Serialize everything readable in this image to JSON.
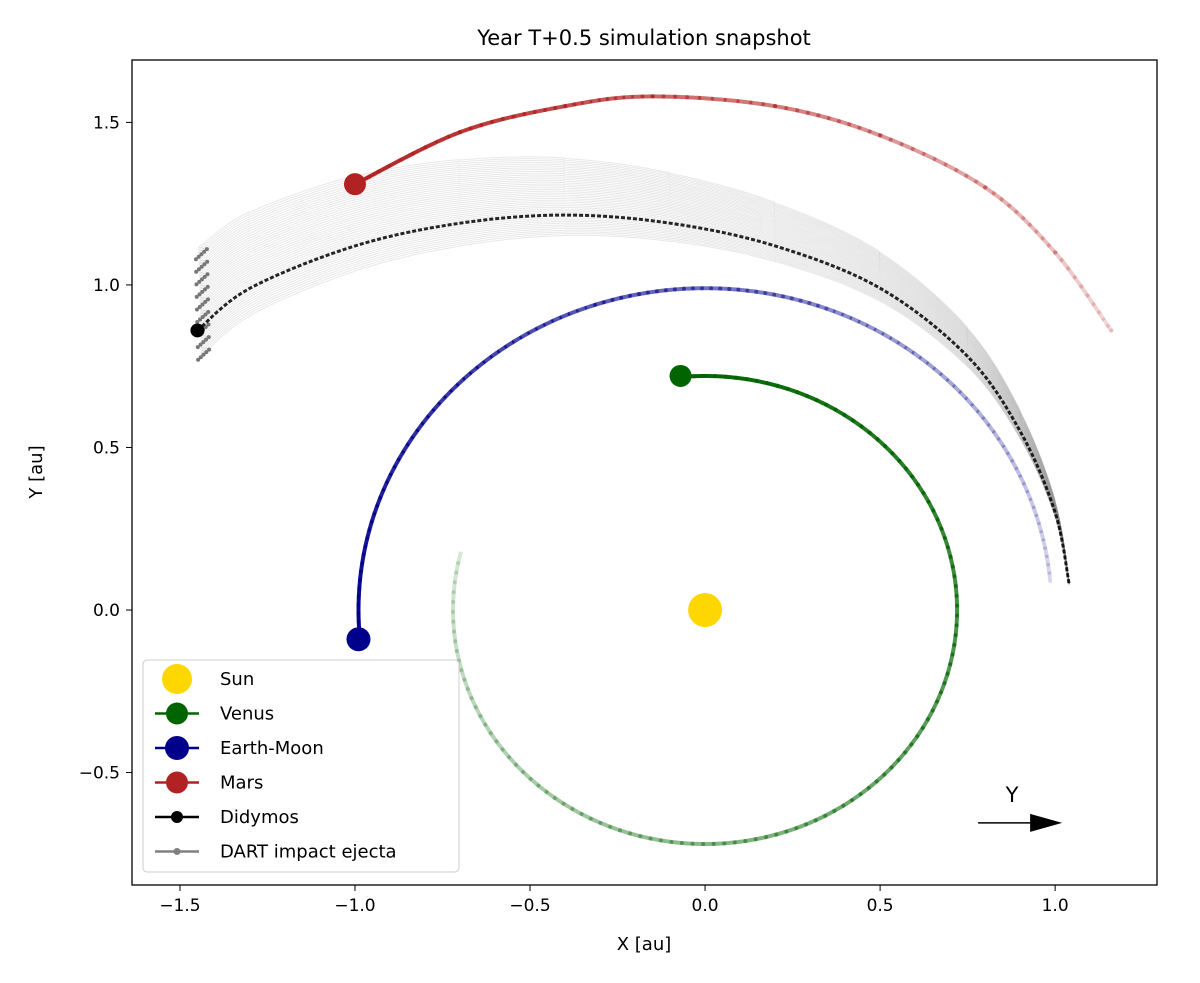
{
  "chart_data": {
    "type": "line",
    "title": "Year T+0.5 simulation snapshot",
    "xlabel": "X [au]",
    "ylabel": "Y [au]",
    "xlim": [
      -1.637,
      1.291
    ],
    "ylim": [
      -0.846,
      1.692
    ],
    "xticks": [
      -1.5,
      -1.0,
      -0.5,
      0.0,
      0.5,
      1.0
    ],
    "xtick_labels": [
      "−1.5",
      "−1.0",
      "−0.5",
      "0.0",
      "0.5",
      "1.0"
    ],
    "yticks": [
      -0.5,
      0.0,
      0.5,
      1.0,
      1.5
    ],
    "ytick_labels": [
      "−0.5",
      "0.0",
      "0.5",
      "1.0",
      "1.5"
    ],
    "grid": false,
    "legend_position": "bottom-left",
    "series": [
      {
        "name": "Sun",
        "color": "#FFD700",
        "marker": [
          0,
          0
        ],
        "points": []
      },
      {
        "name": "Venus",
        "color": "#006400",
        "orbit": {
          "radius": 0.72,
          "start_deg": 95,
          "end_deg": -194
        },
        "marker": [
          -0.07,
          0.72
        ]
      },
      {
        "name": "Earth-Moon",
        "color": "#00008B",
        "orbit": {
          "radius": 0.99,
          "start_deg": 185,
          "end_deg": 5
        },
        "marker": [
          -0.99,
          -0.09
        ]
      },
      {
        "name": "Mars",
        "color": "#B22222",
        "marker": [
          -1.0,
          1.31
        ],
        "points": [
          [
            -1.0,
            1.31
          ],
          [
            -0.7,
            1.47
          ],
          [
            -0.4,
            1.55
          ],
          [
            -0.15,
            1.58
          ],
          [
            0.2,
            1.55
          ],
          [
            0.5,
            1.46
          ],
          [
            0.8,
            1.3
          ],
          [
            1.0,
            1.1
          ],
          [
            1.16,
            0.86
          ]
        ]
      },
      {
        "name": "Didymos",
        "color": "#000000",
        "marker": [
          -1.45,
          0.86
        ],
        "points": [
          [
            -1.45,
            0.86
          ],
          [
            -1.3,
            0.99
          ],
          [
            -1.0,
            1.12
          ],
          [
            -0.7,
            1.19
          ],
          [
            -0.4,
            1.215
          ],
          [
            -0.1,
            1.19
          ],
          [
            0.2,
            1.12
          ],
          [
            0.5,
            0.99
          ],
          [
            0.75,
            0.78
          ],
          [
            0.9,
            0.55
          ],
          [
            1.0,
            0.3
          ],
          [
            1.04,
            0.08
          ]
        ]
      },
      {
        "name": "DART impact ejecta",
        "color": "#808080",
        "start_y_spread": [
          0.77,
          1.11
        ]
      }
    ],
    "annotation": {
      "text": "Y",
      "arrow_from": [
        0.78,
        -0.655
      ],
      "arrow_to": [
        1.02,
        -0.655
      ]
    }
  }
}
